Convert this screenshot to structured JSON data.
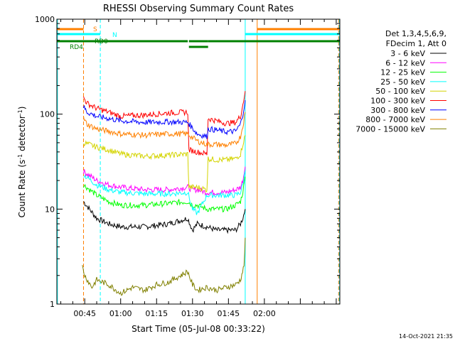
{
  "chart_data": {
    "type": "line",
    "title": "RHESSI Observing Summary Count Rates",
    "xlabel": "Start Time (05-Jul-08 00:33:22)",
    "ylabel_main": "Count Rate (s",
    "ylabel_sup1": "-1",
    "ylabel_mid": " detector",
    "ylabel_sup2": "-1",
    "ylabel_end": ")",
    "ylabel": "Count Rate (s-1 detector-1)",
    "y_scale": "log",
    "ylim": [
      1,
      1000
    ],
    "xlim_minutes": [
      33.37,
      151.5
    ],
    "y_ticks": [
      {
        "value": 1,
        "label": "1"
      },
      {
        "value": 10,
        "label": "10"
      },
      {
        "value": 100,
        "label": "100"
      },
      {
        "value": 1000,
        "label": "1000"
      }
    ],
    "x_ticks": [
      {
        "minute": 45,
        "label": "00:45"
      },
      {
        "minute": 60,
        "label": "01:00"
      },
      {
        "minute": 75,
        "label": "01:15"
      },
      {
        "minute": 90,
        "label": "01:30"
      },
      {
        "minute": 105,
        "label": "01:45"
      },
      {
        "minute": 120,
        "label": "02:00"
      }
    ],
    "legend_placement": "right",
    "legend_header": [
      "Det 1,3,4,5,6,9,",
      "FDecim 1, Att 0"
    ],
    "series": [
      {
        "name": "3 - 6 keV",
        "color": "#000000",
        "x": [
          44.5,
          50,
          55,
          60,
          70,
          80,
          88,
          90,
          92,
          96,
          100,
          104,
          108,
          110,
          111,
          112
        ],
        "y": [
          12,
          8,
          7,
          6.5,
          6.5,
          7,
          8,
          6,
          7,
          6.5,
          6,
          6,
          6,
          7,
          8,
          10
        ]
      },
      {
        "name": "6 - 12 keV",
        "color": "#ff00ff",
        "x": [
          44.5,
          50,
          55,
          60,
          70,
          80,
          88,
          90,
          92,
          96,
          100,
          104,
          108,
          110,
          111,
          112
        ],
        "y": [
          25,
          20,
          18,
          17,
          16,
          16,
          17,
          16,
          16,
          15,
          15,
          15,
          16,
          17,
          20,
          28
        ]
      },
      {
        "name": "12 - 25 keV",
        "color": "#00ff00",
        "x": [
          44.5,
          50,
          55,
          60,
          70,
          80,
          88,
          90,
          92,
          96,
          100,
          104,
          108,
          110,
          111,
          112
        ],
        "y": [
          18,
          14,
          12,
          11,
          11,
          11.5,
          12,
          11,
          11,
          10,
          10,
          10,
          11,
          12,
          15,
          22
        ]
      },
      {
        "name": "25 - 50 keV",
        "color": "#00ffff",
        "x": [
          44.5,
          50,
          55,
          60,
          70,
          80,
          88,
          90,
          92,
          96,
          100,
          104,
          108,
          110,
          111,
          112
        ],
        "y": [
          23,
          18,
          16,
          15,
          14.5,
          14.5,
          15,
          10,
          9,
          14,
          14,
          14,
          14,
          15,
          18,
          25
        ]
      },
      {
        "name": "50 - 100 keV",
        "color": "#d4d400",
        "x": [
          44.5,
          50,
          55,
          60,
          70,
          80,
          88,
          88.5,
          92,
          96,
          96.5,
          100,
          104,
          108,
          110,
          111,
          112
        ],
        "y": [
          50,
          45,
          42,
          38,
          36,
          37,
          38,
          17,
          17,
          16,
          34,
          33,
          33,
          34,
          38,
          48,
          60
        ]
      },
      {
        "name": "100 - 300 keV",
        "color": "#ff0000",
        "x": [
          44.5,
          46,
          50,
          55,
          60,
          70,
          80,
          88,
          88.5,
          92,
          96,
          96.5,
          100,
          104,
          108,
          110,
          111,
          112
        ],
        "y": [
          150,
          130,
          115,
          105,
          95,
          98,
          103,
          105,
          42,
          40,
          38,
          90,
          85,
          80,
          82,
          95,
          125,
          175
        ]
      },
      {
        "name": "300 - 800 keV",
        "color": "#0000ff",
        "x": [
          44.5,
          46,
          50,
          55,
          60,
          70,
          80,
          88,
          92,
          96,
          96.5,
          100,
          104,
          108,
          110,
          111,
          112
        ],
        "y": [
          120,
          105,
          95,
          90,
          85,
          82,
          83,
          82,
          62,
          58,
          70,
          68,
          65,
          66,
          78,
          100,
          140
        ]
      },
      {
        "name": "800 - 7000 keV",
        "color": "#ff8000",
        "x": [
          44.5,
          46,
          50,
          55,
          60,
          70,
          80,
          88,
          92,
          96,
          100,
          104,
          108,
          110,
          111,
          112
        ],
        "y": [
          90,
          78,
          70,
          66,
          62,
          60,
          62,
          62,
          52,
          48,
          48,
          47,
          49,
          58,
          75,
          105
        ]
      },
      {
        "name": "7000 - 15000 keV",
        "color": "#808000",
        "x": [
          44,
          45,
          48,
          50,
          55,
          60,
          65,
          70,
          75,
          80,
          85,
          88,
          90,
          92,
          96,
          100,
          104,
          108,
          110,
          111.5,
          112
        ],
        "y": [
          2.5,
          2,
          1.5,
          1.8,
          1.6,
          1.3,
          1.5,
          1.4,
          1.6,
          1.7,
          2.0,
          2.2,
          1.6,
          1.4,
          1.5,
          1.4,
          1.5,
          1.6,
          1.8,
          2.5,
          5
        ]
      }
    ],
    "state_bars": [
      {
        "label": "S",
        "color": "#ff8000",
        "segments": [
          [
            33.37,
            44.5
          ],
          [
            117,
            151.5
          ]
        ],
        "row": 0
      },
      {
        "label": "N",
        "color": "#00ffff",
        "segments": [
          [
            33.37,
            51.5
          ],
          [
            112,
            151.5
          ]
        ],
        "row": 1
      },
      {
        "label": "RD0",
        "color": "#008000",
        "segments": [
          [
            33.37,
            88
          ],
          [
            88.5,
            96.5
          ],
          [
            96.5,
            151.5
          ]
        ],
        "row": 2
      },
      {
        "label": "RD4",
        "color": "#008000",
        "segments": [
          [
            88.5,
            96.5
          ]
        ],
        "row": 3
      }
    ],
    "vlines": [
      {
        "minute": 44.5,
        "color": "#ff8000",
        "style": "dashed"
      },
      {
        "minute": 51.5,
        "color": "#00ffff",
        "style": "dashed"
      },
      {
        "minute": 33.6,
        "color": "#00ffff",
        "style": "solid"
      },
      {
        "minute": 112,
        "color": "#00ffff",
        "style": "solid"
      },
      {
        "minute": 117,
        "color": "#ff8000",
        "style": "solid"
      },
      {
        "minute": 151.0,
        "color": "#ff8000",
        "style": "dashed"
      },
      {
        "minute": 151.3,
        "color": "#00ffff",
        "style": "dashed"
      }
    ]
  },
  "footer": {
    "timestamp": "14-Oct-2021 21:35"
  }
}
